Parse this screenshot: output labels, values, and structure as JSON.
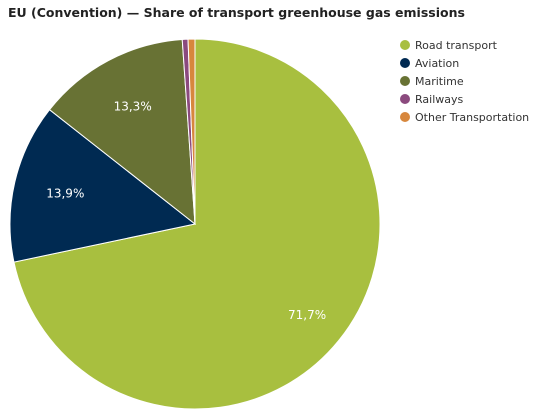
{
  "chart_data": {
    "type": "pie",
    "title": "EU (Convention) — Share of transport greenhouse gas emissions",
    "slices": [
      {
        "label": "Road transport",
        "value": 71.7,
        "color": "#a8bf3f",
        "data_label": "71,7%"
      },
      {
        "label": "Aviation",
        "value": 13.9,
        "color": "#002a52",
        "data_label": "13,9%"
      },
      {
        "label": "Maritime",
        "value": 13.3,
        "color": "#687234",
        "data_label": "13,3%"
      },
      {
        "label": "Railways",
        "value": 0.5,
        "color": "#8b4a7e",
        "data_label": ""
      },
      {
        "label": "Other Transportation",
        "value": 0.6,
        "color": "#d7873d",
        "data_label": ""
      }
    ],
    "legend_position": "top-right"
  }
}
